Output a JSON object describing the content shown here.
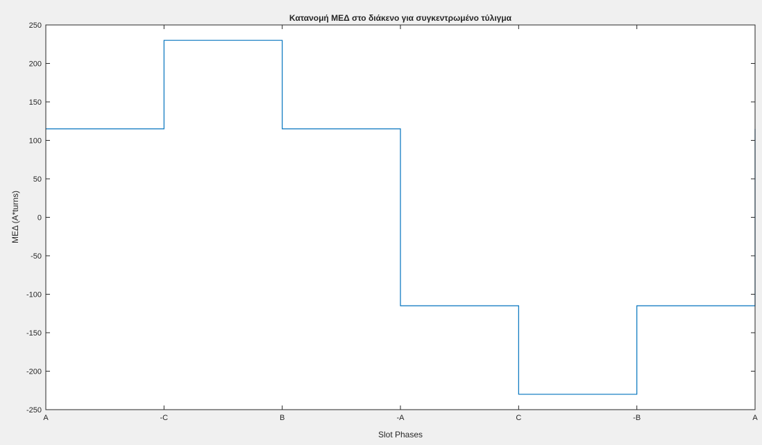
{
  "chart_data": {
    "type": "line",
    "title": "Κατανομή ΜΕΔ στο διάκενο για συγκεντρωμένο τύλιγμα",
    "xlabel": "Slot Phases",
    "ylabel": "ΜΕΔ (A*turns)",
    "x_tick_labels": [
      "A",
      "-C",
      "B",
      "-A",
      "C",
      "-B",
      "A"
    ],
    "xlim": [
      0,
      6
    ],
    "ylim": [
      -250,
      250
    ],
    "y_ticks": [
      -250,
      -200,
      -150,
      -100,
      -50,
      0,
      50,
      100,
      150,
      200,
      250
    ],
    "grid": false,
    "series": [
      {
        "step": "post",
        "x": [
          0,
          1,
          2,
          3,
          4,
          5,
          6
        ],
        "values": [
          115,
          230,
          115,
          -115,
          -230,
          -115,
          115
        ]
      }
    ],
    "colors": {
      "line": "#0072bd",
      "axes": "#262626",
      "background": "#f0f0f0",
      "plot_area": "#ffffff"
    }
  }
}
